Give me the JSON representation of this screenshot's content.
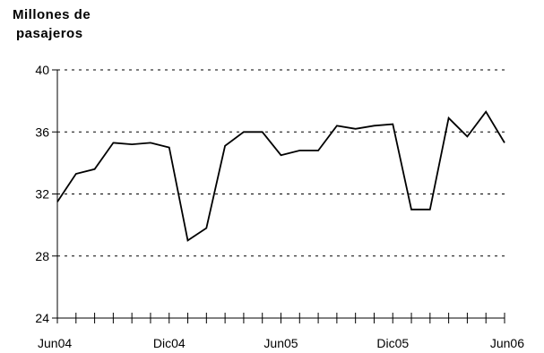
{
  "chart_data": {
    "type": "line",
    "ylabel_lines": [
      "Millones de",
      "pasajeros"
    ],
    "ylim": [
      24,
      40
    ],
    "yticks": [
      24,
      28,
      32,
      36,
      40
    ],
    "gridlines": "dashed",
    "x_tick_labels": [
      {
        "index": 0,
        "label": "Jun04"
      },
      {
        "index": 6,
        "label": "Dic04"
      },
      {
        "index": 12,
        "label": "Jun05"
      },
      {
        "index": 18,
        "label": "Dic05"
      },
      {
        "index": 24,
        "label": "Jun06"
      }
    ],
    "series": [
      {
        "values": [
          31.5,
          33.3,
          33.6,
          35.3,
          35.2,
          35.3,
          35.0,
          29.0,
          29.8,
          35.1,
          36.0,
          36.0,
          34.5,
          34.8,
          34.8,
          36.4,
          36.2,
          36.4,
          36.5,
          31.0,
          31.0,
          36.9,
          35.7,
          37.3,
          35.3
        ]
      }
    ],
    "line_color": "#000000"
  }
}
